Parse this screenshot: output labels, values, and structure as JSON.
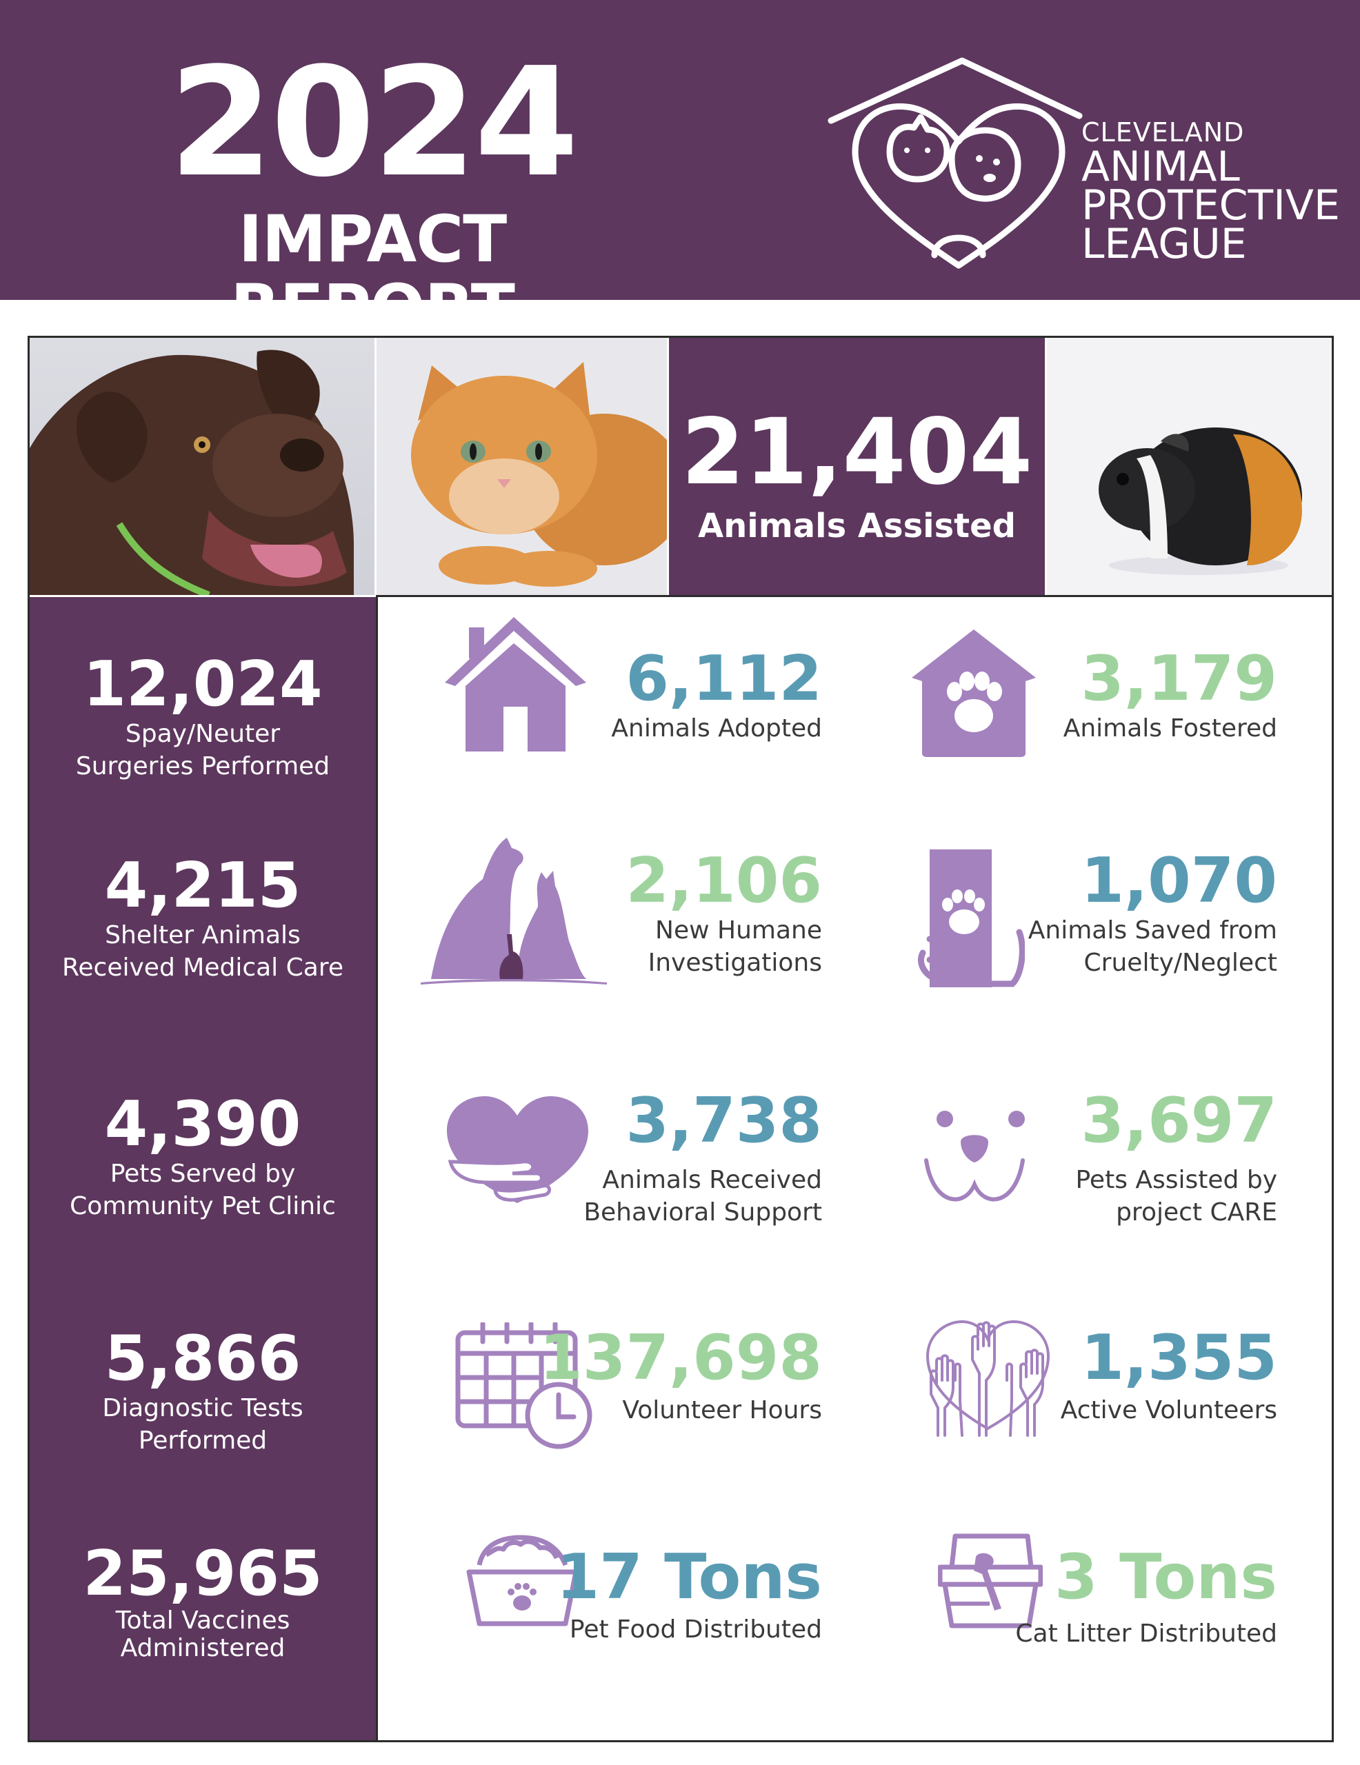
{
  "header": {
    "year": "2024",
    "subtitle": "IMPACT REPORT",
    "org_line1": "CLEVELAND",
    "org_line2": "ANIMAL",
    "org_line3": "PROTECTIVE",
    "org_line4": "LEAGUE"
  },
  "hero": {
    "value": "21,404",
    "label": "Animals Assisted"
  },
  "sidebar": [
    {
      "value": "12,024",
      "label1": "Spay/Neuter",
      "label2": "Surgeries Performed"
    },
    {
      "value": "4,215",
      "label1": "Shelter Animals",
      "label2": "Received Medical Care"
    },
    {
      "value": "4,390",
      "label1": "Pets Served by",
      "label2": "Community Pet Clinic"
    },
    {
      "value": "5,866",
      "label1": "Diagnostic Tests",
      "label2": "Performed"
    },
    {
      "value": "25,965",
      "label1": "Total Vaccines",
      "label2": "Administered"
    }
  ],
  "stats": [
    {
      "value": "6,112",
      "label1": "Animals Adopted",
      "label2": "",
      "color": "#5a9bb4",
      "icon": "house-icon"
    },
    {
      "value": "3,179",
      "label1": "Animals Fostered",
      "label2": "",
      "color": "#9fd39e",
      "icon": "paw-house-icon"
    },
    {
      "value": "2,106",
      "label1": "New Humane",
      "label2": "Investigations",
      "color": "#9fd39e",
      "icon": "pets-silhouette-icon"
    },
    {
      "value": "1,070",
      "label1": "Animals Saved from",
      "label2": "Cruelty/Neglect",
      "color": "#5a9bb4",
      "icon": "paw-in-hand-icon"
    },
    {
      "value": "3,738",
      "label1": "Animals Received",
      "label2": "Behavioral Support",
      "color": "#5a9bb4",
      "icon": "heart-hug-icon"
    },
    {
      "value": "3,697",
      "label1": "Pets Assisted by",
      "label2": "project CARE",
      "color": "#9fd39e",
      "icon": "pet-face-icon"
    },
    {
      "value": "137,698",
      "label1": "Volunteer Hours",
      "label2": "",
      "color": "#9fd39e",
      "icon": "calendar-clock-icon"
    },
    {
      "value": "1,355",
      "label1": "Active Volunteers",
      "label2": "",
      "color": "#5a9bb4",
      "icon": "hands-heart-icon"
    },
    {
      "value": "17 Tons",
      "label1": "Pet Food Distributed",
      "label2": "",
      "color": "#5a9bb4",
      "icon": "food-bowl-icon"
    },
    {
      "value": "3 Tons",
      "label1": "Cat Litter Distributed",
      "label2": "",
      "color": "#9fd39e",
      "icon": "litter-box-icon"
    }
  ],
  "colors": {
    "brand_purple": "#5d375e",
    "icon_purple": "#a382be",
    "blue": "#5a9bb4",
    "green": "#9fd39e"
  }
}
